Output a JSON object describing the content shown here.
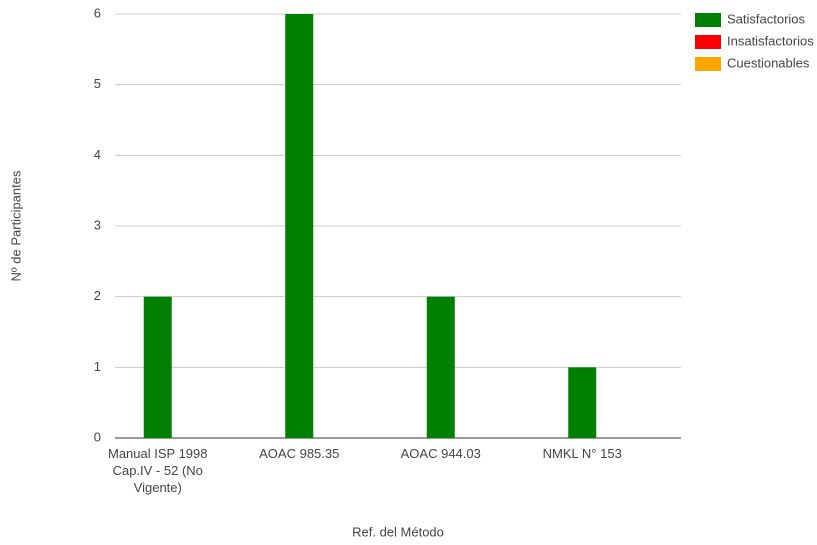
{
  "chart_data": {
    "type": "bar",
    "x_label": "Ref. del Método",
    "y_label": "Nº de Participantes",
    "categories": [
      "Manual ISP 1998 Cap.IV - 52 (No Vigente)",
      "AOAC 985.35",
      "AOAC 944.03",
      "NMKL N° 153"
    ],
    "series": [
      {
        "name": "Satisfactorios",
        "color": "#008000",
        "values": [
          2,
          6,
          2,
          1
        ]
      },
      {
        "name": "Insatisfactorios",
        "color": "#ff0000",
        "values": [
          0,
          0,
          0,
          0
        ]
      },
      {
        "name": "Cuestionables",
        "color": "#ffa500",
        "values": [
          0,
          0,
          0,
          0
        ]
      }
    ],
    "ylim": [
      0,
      6
    ],
    "yticks": [
      0,
      1,
      2,
      3,
      4,
      5,
      6
    ],
    "grid": true,
    "legend": "top-right"
  }
}
